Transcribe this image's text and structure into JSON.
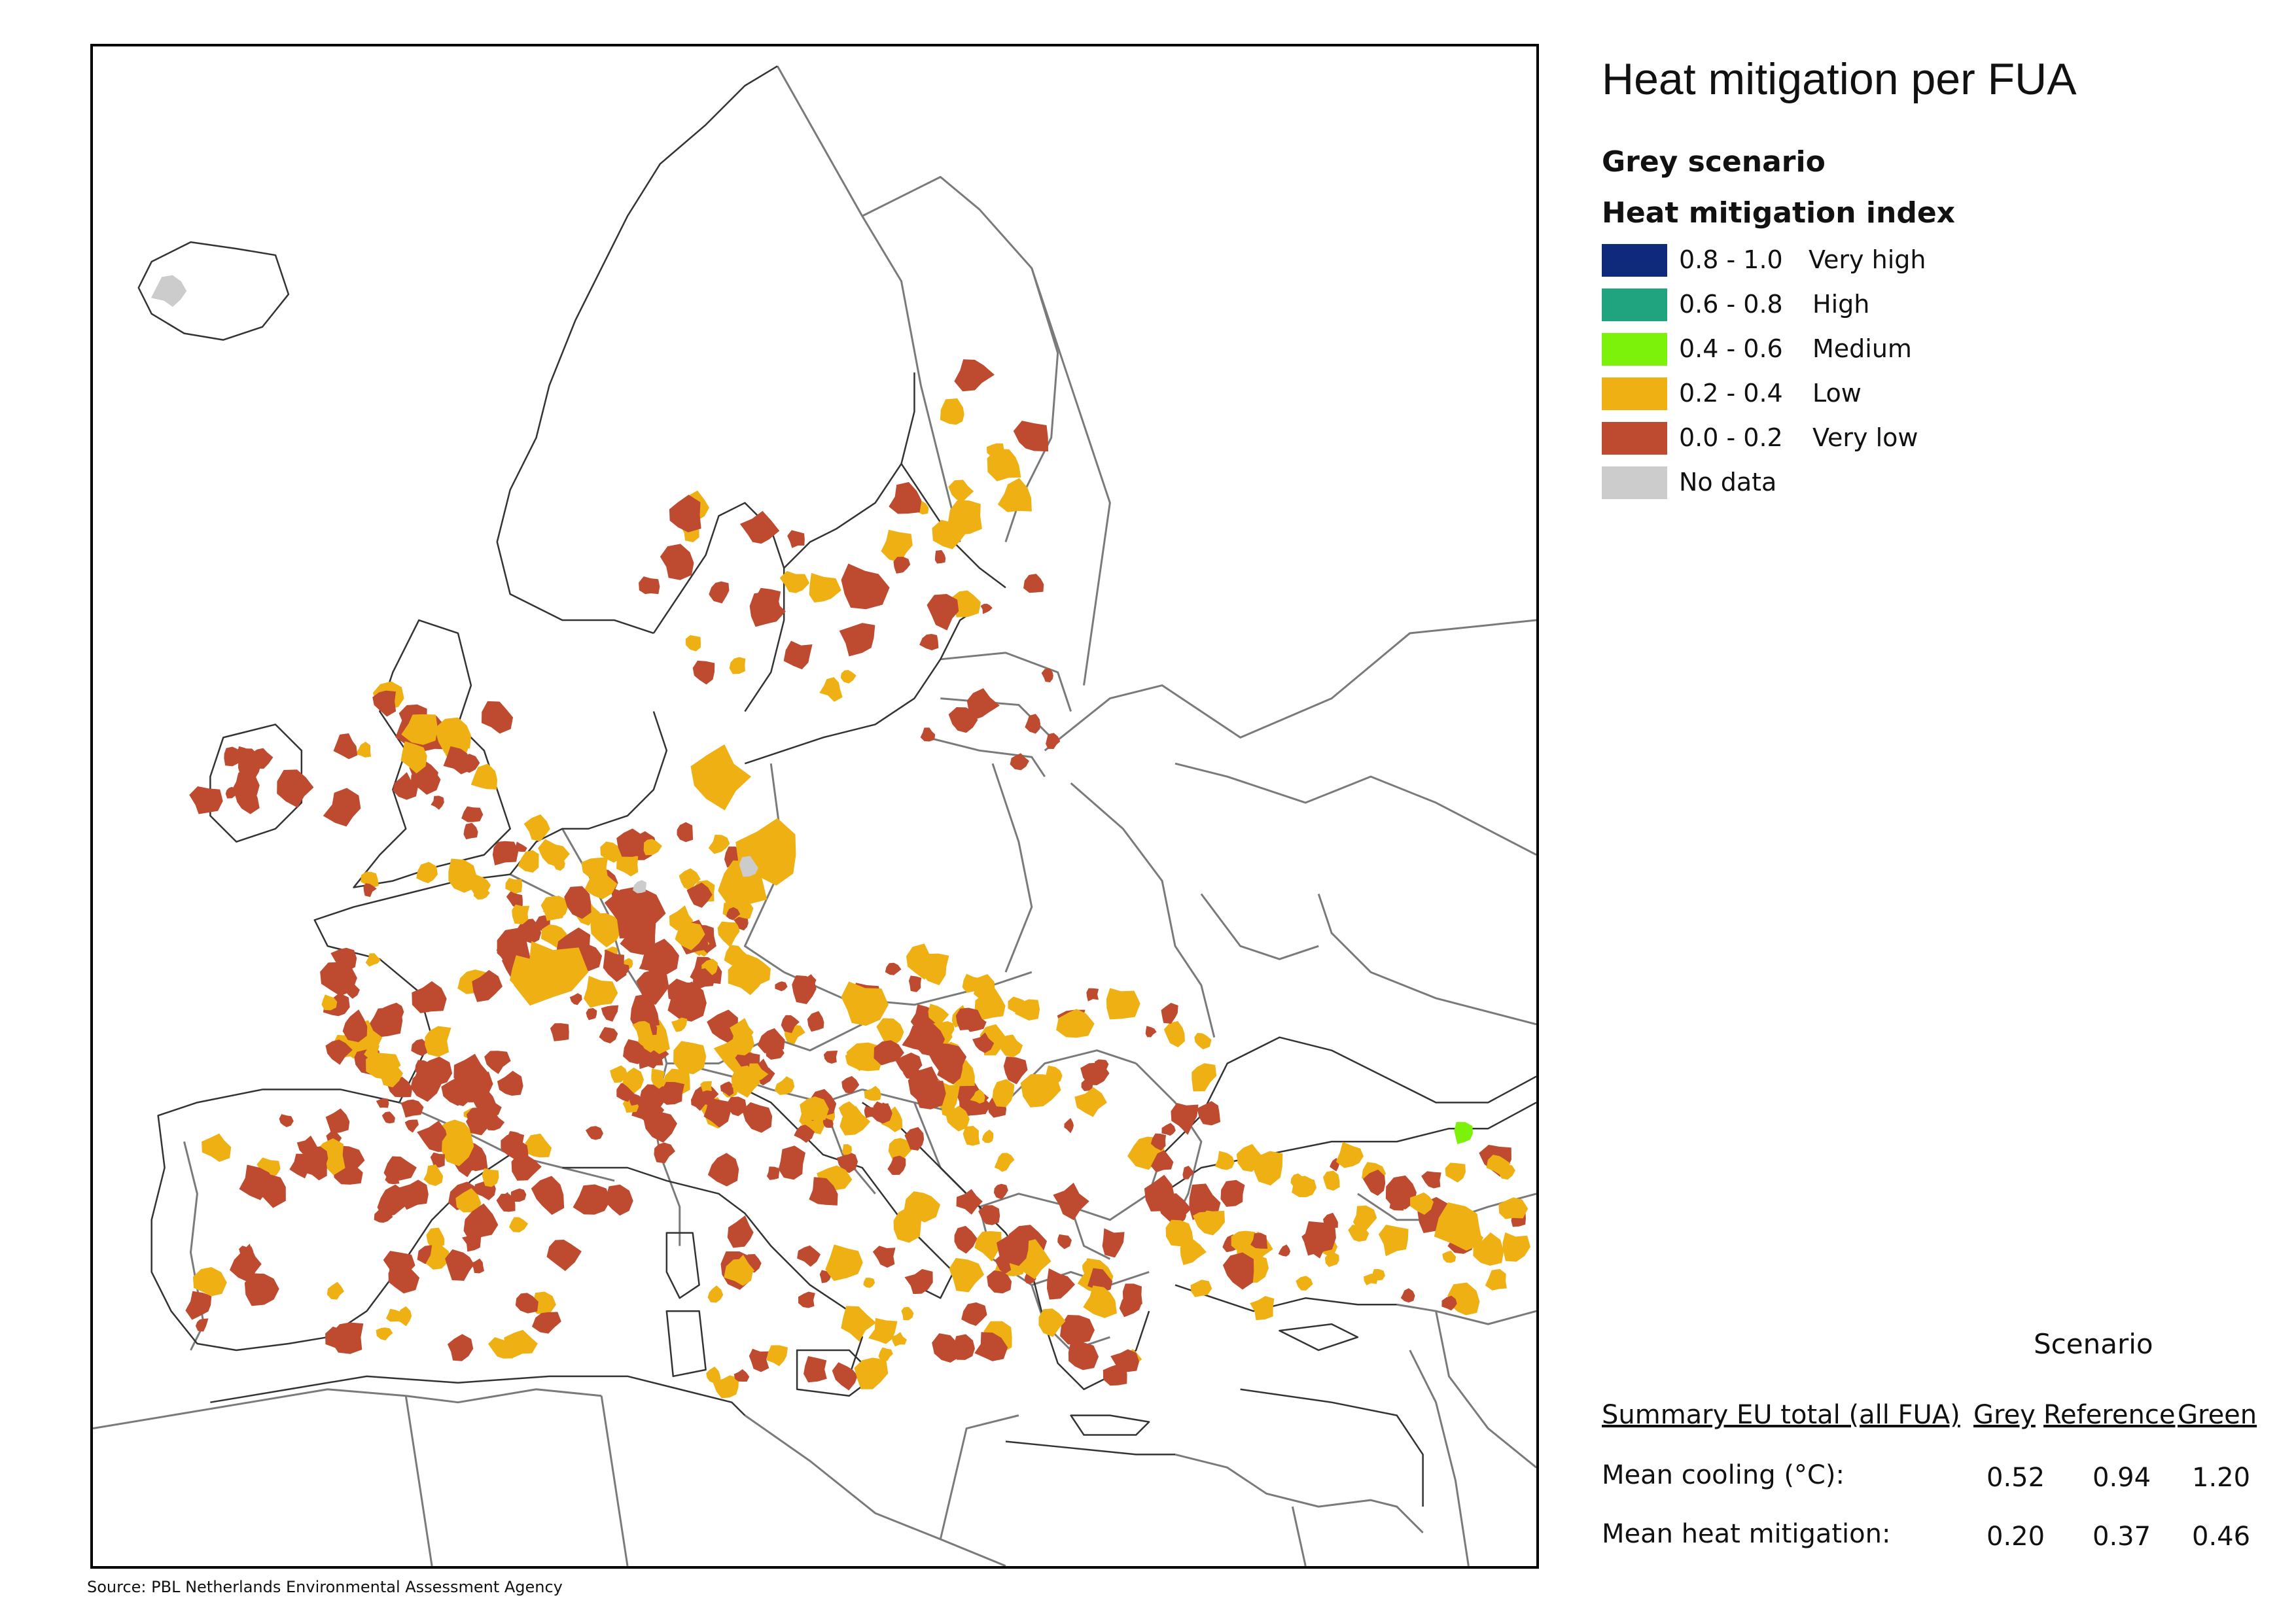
{
  "title": "Heat mitigation per FUA",
  "scenario_name": "Grey scenario",
  "legend": {
    "title": "Heat mitigation index",
    "items": [
      {
        "range": "0.8 - 1.0",
        "label": "Very high",
        "color": "#0f2a7a"
      },
      {
        "range": "0.6 - 0.8",
        "label": "High",
        "color": "#1fa47f"
      },
      {
        "range": "0.4 - 0.6",
        "label": "Medium",
        "color": "#7cf20a"
      },
      {
        "range": "0.2 - 0.4",
        "label": "Low",
        "color": "#efb013"
      },
      {
        "range": "0.0 - 0.2",
        "label": "Very low",
        "color": "#be4a30"
      },
      {
        "range": "",
        "label": "No data",
        "color": "#cccccc"
      }
    ]
  },
  "summary": {
    "scenario_header": "Scenario",
    "row_header": "Summary EU total (all FUA)",
    "columns": [
      "Grey",
      "Reference",
      "Green"
    ],
    "rows": [
      {
        "label": "Mean cooling (°C):",
        "values": [
          "0.52",
          "0.94",
          "1.20"
        ]
      },
      {
        "label": "Mean heat mitigation:",
        "values": [
          "0.20",
          "0.37",
          "0.46"
        ]
      }
    ]
  },
  "source": "Source: PBL Netherlands Environmental Assessment Agency",
  "colors": {
    "border": "#7a7a7a",
    "coast": "#333333",
    "very_low": "#be4a30",
    "low": "#efb013",
    "medium": "#7cf20a",
    "no_data": "#cccccc"
  }
}
